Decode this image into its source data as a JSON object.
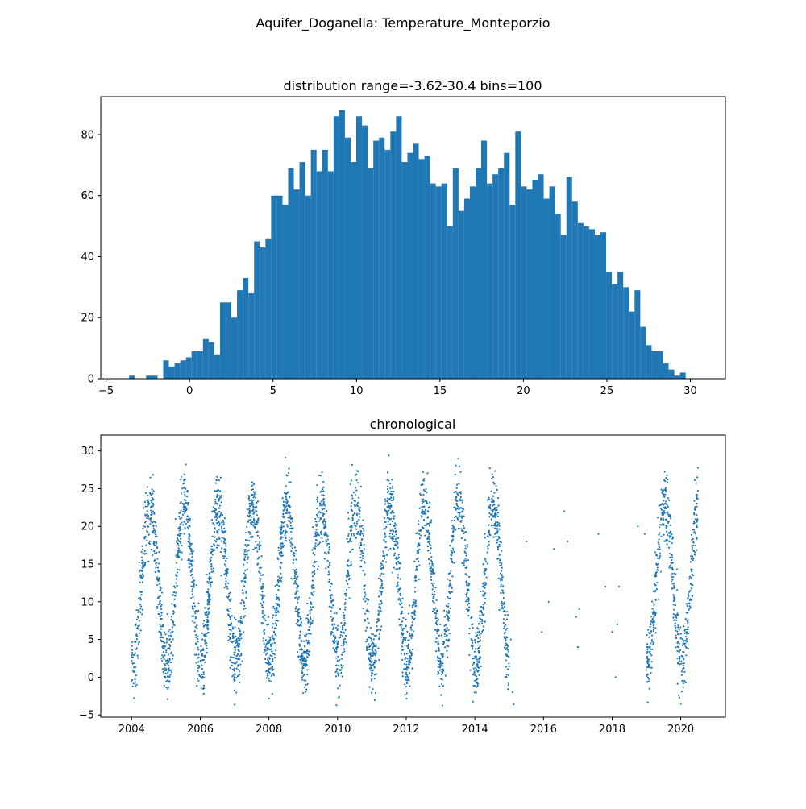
{
  "figure_title": "Aquifer_Doganella: Temperature_Monteporzio",
  "colors": {
    "series": "#1f77b4"
  },
  "chart_data": [
    {
      "type": "bar",
      "title": "distribution range=-3.62-30.4 bins=100",
      "xlabel": "",
      "ylabel": "",
      "range": [
        -3.62,
        30.4
      ],
      "bins": 100,
      "xlim": [
        -5.32,
        32.1
      ],
      "ylim": [
        0,
        92.4
      ],
      "xticks": [
        -5,
        0,
        5,
        10,
        15,
        20,
        25,
        30
      ],
      "yticks": [
        0,
        20,
        40,
        60,
        80
      ],
      "grid": false,
      "counts": [
        1,
        0,
        0,
        1,
        1,
        0,
        6,
        4,
        5,
        6,
        7,
        9,
        9,
        13,
        12,
        8,
        25,
        25,
        20,
        29,
        33,
        28,
        45,
        43,
        46,
        60,
        60,
        57,
        69,
        62,
        71,
        60,
        75,
        68,
        75,
        68,
        86,
        88,
        79,
        71,
        86,
        83,
        69,
        78,
        79,
        75,
        81,
        86,
        71,
        74,
        77,
        72,
        73,
        64,
        63,
        64,
        50,
        69,
        55,
        59,
        63,
        69,
        78,
        64,
        67,
        69,
        74,
        57,
        81,
        63,
        62,
        65,
        67,
        59,
        63,
        54,
        47,
        66,
        58,
        51,
        50,
        49,
        47,
        48,
        35,
        31,
        35,
        30,
        22,
        29,
        17,
        11,
        9,
        9,
        5,
        3,
        1,
        2,
        0,
        0
      ]
    },
    {
      "type": "scatter",
      "title": "chronological",
      "xlabel": "",
      "ylabel": "",
      "xlim": [
        2003.1,
        2021.3
      ],
      "ylim": [
        -5.3,
        32.1
      ],
      "xticks": [
        2004,
        2006,
        2008,
        2010,
        2012,
        2014,
        2016,
        2018,
        2020
      ],
      "yticks": [
        -5,
        0,
        5,
        10,
        15,
        20,
        25,
        30
      ],
      "grid": false,
      "seasonal_amplitude": 10.5,
      "seasonal_mean": 12.4,
      "segments": [
        {
          "x_start": 2004.0,
          "x_end": 2015.0,
          "points_per_year": 330
        },
        {
          "x_start": 2019.0,
          "x_end": 2020.5,
          "points_per_year": 330
        }
      ],
      "sparse_points": [
        {
          "x": 2015.05,
          "y": 5.0
        },
        {
          "x": 2015.1,
          "y": -2.0
        },
        {
          "x": 2015.13,
          "y": -3.6
        },
        {
          "x": 2015.5,
          "y": 18.0
        },
        {
          "x": 2015.95,
          "y": 6.0
        },
        {
          "x": 2016.15,
          "y": 10.0
        },
        {
          "x": 2016.3,
          "y": 17.0
        },
        {
          "x": 2016.6,
          "y": 22.0
        },
        {
          "x": 2016.7,
          "y": 18.0
        },
        {
          "x": 2016.95,
          "y": 8.0
        },
        {
          "x": 2017.0,
          "y": 4.0
        },
        {
          "x": 2017.05,
          "y": 9.0
        },
        {
          "x": 2017.6,
          "y": 19.0
        },
        {
          "x": 2017.8,
          "y": 12.0
        },
        {
          "x": 2018.0,
          "y": 6.0
        },
        {
          "x": 2018.1,
          "y": 0.0
        },
        {
          "x": 2018.15,
          "y": 7.0
        },
        {
          "x": 2018.2,
          "y": 12.0
        },
        {
          "x": 2018.75,
          "y": 20.0
        },
        {
          "x": 2018.95,
          "y": 19.0
        }
      ]
    }
  ]
}
